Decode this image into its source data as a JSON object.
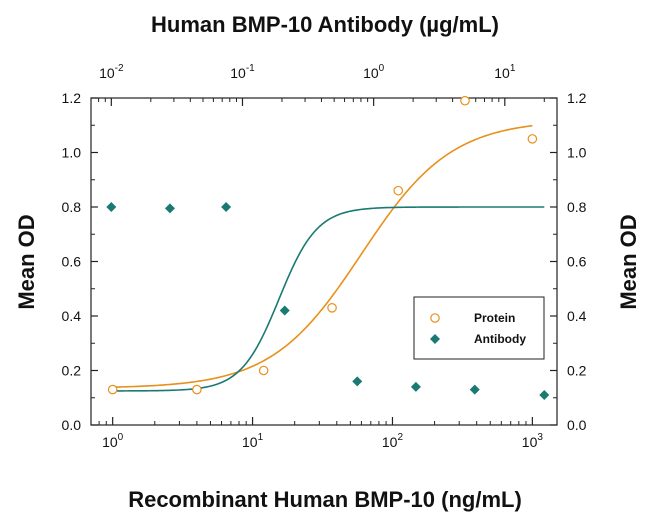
{
  "chart_data": {
    "type": "scatter",
    "title": "Human BMP-10 Antibody (µg/mL)",
    "xlabel": "Recombinant Human BMP-10 (ng/mL)",
    "ylabel": "Mean OD",
    "ylabel_right": "Mean OD",
    "x_scale": "log",
    "xlim": [
      0.7,
      1500
    ],
    "ylim": [
      0,
      1.2
    ],
    "y_ticks": [
      0,
      0.2,
      0.4,
      0.6,
      0.8,
      1.0,
      1.2
    ],
    "y_tick_labels": [
      "0.0",
      "0.2",
      "0.4",
      "0.6",
      "0.8",
      "1.0",
      "1.2"
    ],
    "x_ticks_bottom": [
      {
        "value": 1,
        "base": "10",
        "exp": "0"
      },
      {
        "value": 10,
        "base": "10",
        "exp": "1"
      },
      {
        "value": 100,
        "base": "10",
        "exp": "2"
      },
      {
        "value": 1000,
        "base": "10",
        "exp": "3"
      }
    ],
    "x2_scale": "log",
    "x2lim": [
      0.007,
      25
    ],
    "x_ticks_top": [
      {
        "value": 0.01,
        "base": "10",
        "exp": "-2"
      },
      {
        "value": 0.1,
        "base": "10",
        "exp": "-1"
      },
      {
        "value": 1,
        "base": "10",
        "exp": "0"
      },
      {
        "value": 10,
        "base": "10",
        "exp": "1"
      }
    ],
    "legend_position": "lower-right",
    "grid": false,
    "series": [
      {
        "name": "Protein",
        "axis": "bottom",
        "marker": "open-circle",
        "color": "#e8901c",
        "x": [
          1,
          4,
          12,
          37,
          110,
          330,
          1000
        ],
        "y": [
          0.13,
          0.13,
          0.2,
          0.43,
          0.86,
          1.19,
          1.05
        ],
        "fit": {
          "bottom": 0.135,
          "top": 1.12,
          "ec50": 60,
          "hill": 1.35
        }
      },
      {
        "name": "Antibody",
        "axis": "top",
        "marker": "filled-diamond",
        "color": "#1a7a72",
        "x": [
          0.01,
          0.028,
          0.075,
          0.21,
          0.75,
          2.1,
          5.9,
          20
        ],
        "y": [
          0.8,
          0.795,
          0.8,
          0.42,
          0.16,
          0.14,
          0.13,
          0.11
        ],
        "fit": {
          "bottom": 0.125,
          "top": 0.8,
          "ec50": 0.19,
          "hill": 3.0
        }
      }
    ]
  }
}
